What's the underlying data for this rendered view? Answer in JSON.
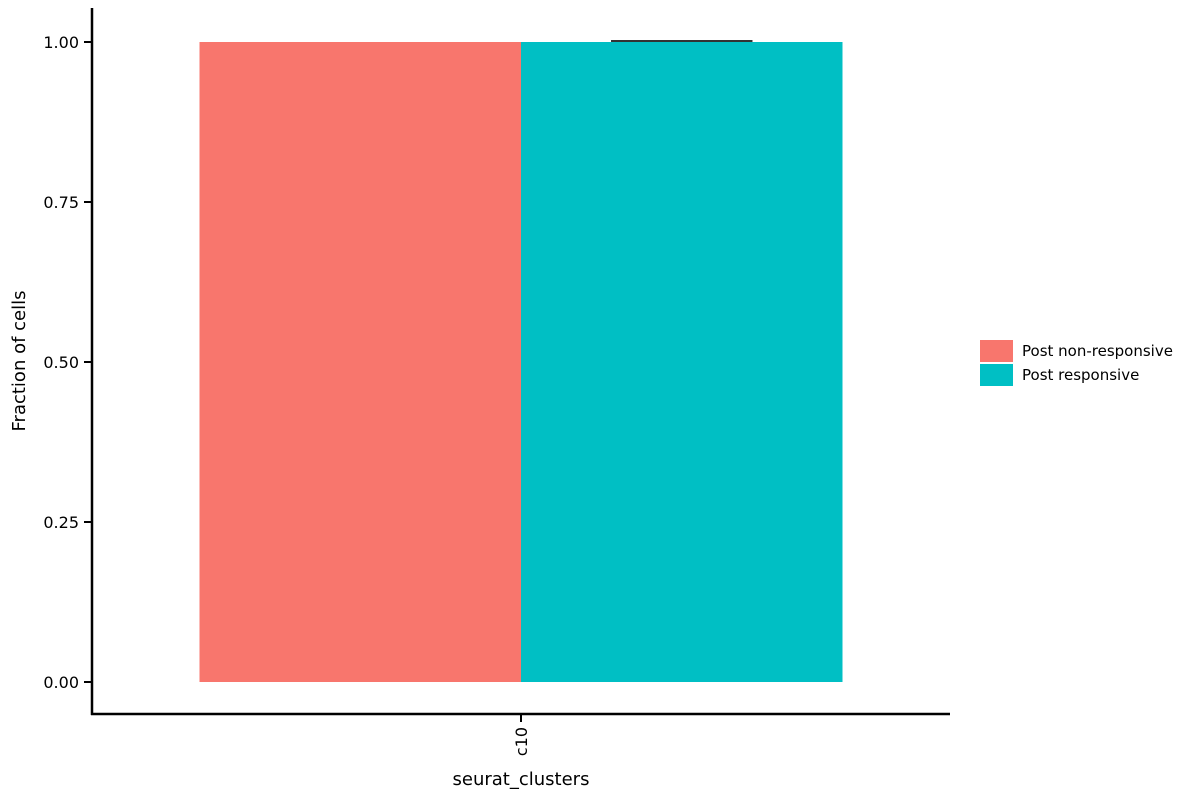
{
  "chart_data": {
    "type": "bar",
    "title": "",
    "xlabel": "seurat_clusters",
    "ylabel": "Fraction of cells",
    "categories": [
      "c10"
    ],
    "series": [
      {
        "name": "Post non-responsive",
        "values": [
          1.0
        ],
        "color": "#F8766D"
      },
      {
        "name": "Post responsive",
        "values": [
          1.0
        ],
        "color": "#00BFC4"
      }
    ],
    "error_bar": {
      "series": "Post responsive",
      "category": "c10",
      "lower": 1.0,
      "upper": 1.0
    },
    "ylim": [
      -0.05,
      1.05
    ],
    "yticks": [
      0.0,
      0.25,
      0.5,
      0.75,
      1.0
    ],
    "ytick_labels": [
      "0.00",
      "0.25",
      "0.50",
      "0.75",
      "1.00"
    ],
    "grid": false,
    "legend_position": "right"
  }
}
